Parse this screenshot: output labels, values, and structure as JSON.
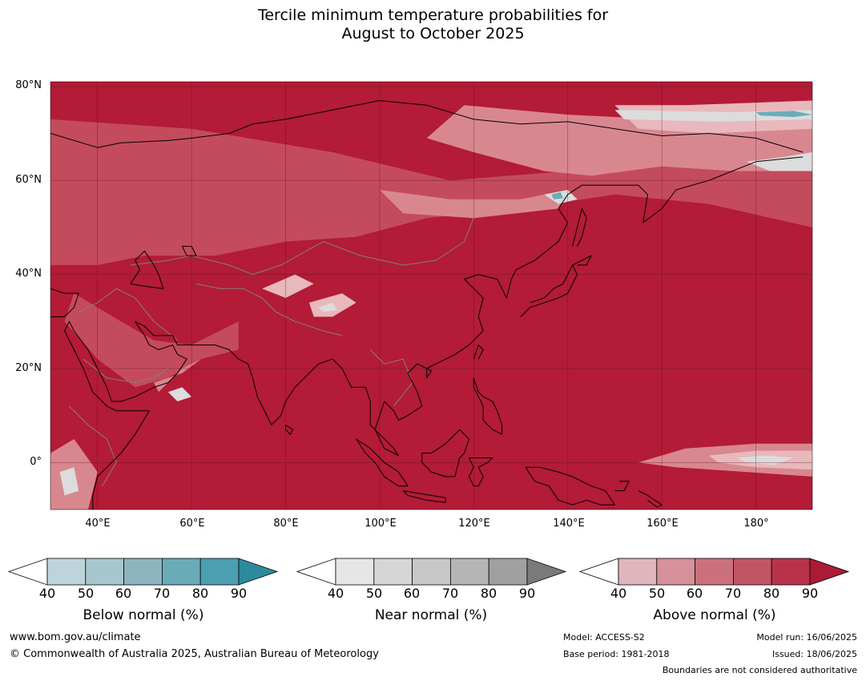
{
  "title": {
    "line1": "Tercile minimum temperature probabilities for",
    "line2": "August to October 2025"
  },
  "map": {
    "lat_labels": [
      "80°N",
      "60°N",
      "40°N",
      "20°N",
      "0°"
    ],
    "lon_labels": [
      "40°E",
      "60°E",
      "80°E",
      "100°E",
      "120°E",
      "140°E",
      "160°E",
      "180°"
    ],
    "colors": {
      "dominant": "#b31b36",
      "medium": "#c44b5c",
      "light": "#d9878f",
      "pale": "#e8b8bd",
      "neutral": "#dcdcdc",
      "blue": "#6bacba",
      "coast": "#000000",
      "border": "#808080"
    }
  },
  "colorbars": [
    {
      "name": "below",
      "title": "Below normal (%)",
      "ticks": [
        "40",
        "50",
        "60",
        "70",
        "80",
        "90"
      ],
      "colors": [
        "#ffffff",
        "#bed4db",
        "#a6c7cd",
        "#8cb5c0",
        "#6aabb8",
        "#4b9fb0",
        "#2d8a9c"
      ]
    },
    {
      "name": "near",
      "title": "Near normal (%)",
      "ticks": [
        "40",
        "50",
        "60",
        "70",
        "80",
        "90"
      ],
      "colors": [
        "#ffffff",
        "#e6e6e6",
        "#d6d6d6",
        "#c8c8c8",
        "#b5b5b5",
        "#a0a0a0",
        "#7a7a7a"
      ]
    },
    {
      "name": "above",
      "title": "Above normal (%)",
      "ticks": [
        "40",
        "50",
        "60",
        "70",
        "80",
        "90"
      ],
      "colors": [
        "#ffffff",
        "#e0b5bb",
        "#d6919a",
        "#cc717c",
        "#c25564",
        "#b8334a",
        "#ab1a36"
      ]
    }
  ],
  "footer": {
    "url": "www.bom.gov.au/climate",
    "copyright": "© Commonwealth of Australia 2025, Australian Bureau of Meteorology",
    "model": "Model: ACCESS-S2",
    "base_period": "Base period: 1981-2018",
    "model_run": "Model run: 16/06/2025",
    "issued": "Issued: 18/06/2025",
    "boundaries": "Boundaries are not considered authoritative"
  }
}
